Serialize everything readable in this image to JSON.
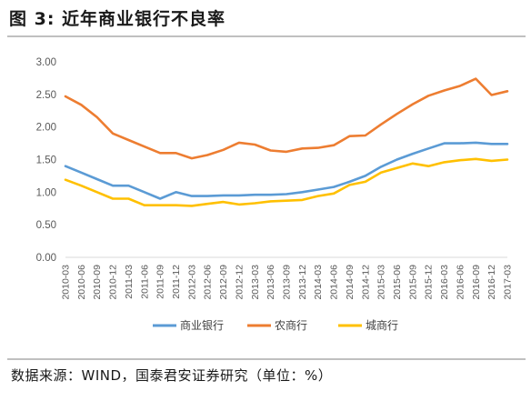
{
  "header": {
    "title": "图 3:  近年商业银行不良率"
  },
  "footer": {
    "source": "数据来源：WIND，国泰君安证券研究（单位：%）"
  },
  "chart_data": {
    "type": "line",
    "title": "近年商业银行不良率",
    "xlabel": "",
    "ylabel": "",
    "ylim": [
      0,
      3
    ],
    "yticks": [
      "0.00",
      "0.50",
      "1.00",
      "1.50",
      "2.00",
      "2.50",
      "3.00"
    ],
    "grid": false,
    "legend_position": "bottom",
    "categories": [
      "2010-03",
      "2010-06",
      "2010-09",
      "2010-12",
      "2011-03",
      "2011-06",
      "2011-09",
      "2011-12",
      "2012-03",
      "2012-06",
      "2012-09",
      "2012-12",
      "2013-03",
      "2013-06",
      "2013-09",
      "2013-12",
      "2014-03",
      "2014-06",
      "2014-09",
      "2014-12",
      "2015-03",
      "2015-06",
      "2015-09",
      "2015-12",
      "2016-03",
      "2016-06",
      "2016-09",
      "2016-12",
      "2017-03"
    ],
    "series": [
      {
        "name": "商业银行",
        "color": "#5B9BD5",
        "values": [
          1.4,
          1.3,
          1.2,
          1.1,
          1.1,
          1.0,
          0.9,
          1.0,
          0.94,
          0.94,
          0.95,
          0.95,
          0.96,
          0.96,
          0.97,
          1.0,
          1.04,
          1.08,
          1.16,
          1.25,
          1.39,
          1.5,
          1.59,
          1.67,
          1.75,
          1.75,
          1.76,
          1.74,
          1.74
        ]
      },
      {
        "name": "农商行",
        "color": "#ED7D31",
        "values": [
          2.47,
          2.34,
          2.15,
          1.9,
          1.8,
          1.7,
          1.6,
          1.6,
          1.52,
          1.57,
          1.65,
          1.76,
          1.73,
          1.64,
          1.62,
          1.67,
          1.68,
          1.72,
          1.86,
          1.87,
          2.04,
          2.2,
          2.35,
          2.48,
          2.56,
          2.63,
          2.74,
          2.49,
          2.55
        ]
      },
      {
        "name": "城商行",
        "color": "#FFC000",
        "values": [
          1.19,
          1.1,
          1.0,
          0.9,
          0.9,
          0.8,
          0.8,
          0.8,
          0.79,
          0.82,
          0.85,
          0.81,
          0.83,
          0.86,
          0.87,
          0.88,
          0.94,
          0.98,
          1.11,
          1.16,
          1.3,
          1.37,
          1.44,
          1.4,
          1.46,
          1.49,
          1.51,
          1.48,
          1.5
        ]
      }
    ]
  }
}
